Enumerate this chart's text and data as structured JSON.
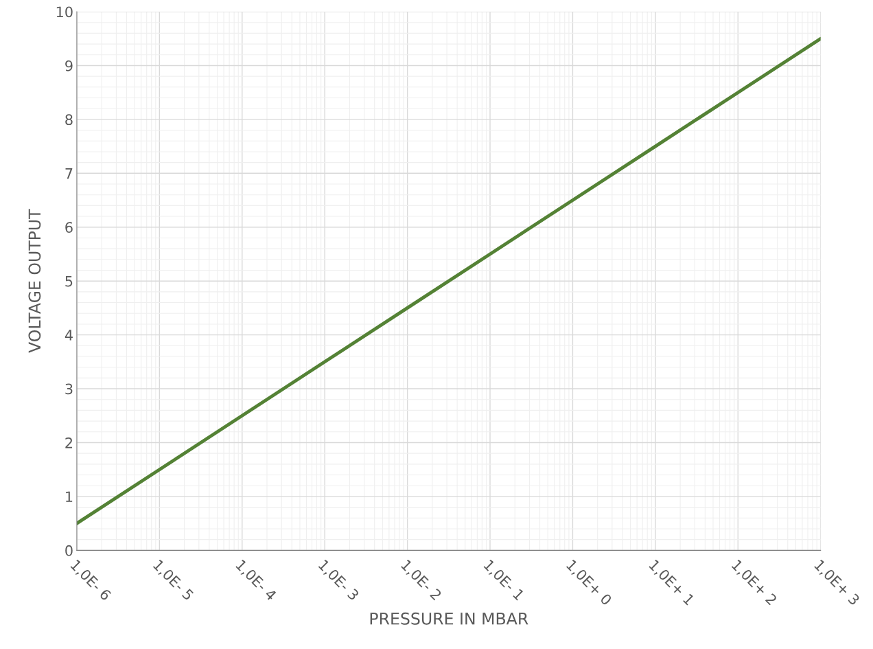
{
  "chart_data": {
    "type": "line",
    "xlabel": "PRESSURE IN MBAR",
    "ylabel": "VOLTAGE OUTPUT",
    "categories": [
      "1,0E- 6",
      "1,0E- 5",
      "1,0E- 4",
      "1,0E- 3",
      "1,0E- 2",
      "1,0E- 1",
      "1,0E+ 0",
      "1,0E+ 1",
      "1,0E+ 2",
      "1,0E+ 3"
    ],
    "series": [
      {
        "color": "#548235",
        "values": [
          0.5,
          1.5,
          2.5,
          3.5,
          4.5,
          5.5,
          6.5,
          7.5,
          8.5,
          9.5
        ]
      }
    ],
    "ylim": [
      0,
      10
    ],
    "yticks": [
      0,
      1,
      2,
      3,
      4,
      5,
      6,
      7,
      8,
      9,
      10
    ],
    "grid": true,
    "marker": "none",
    "line_style": "solid"
  }
}
